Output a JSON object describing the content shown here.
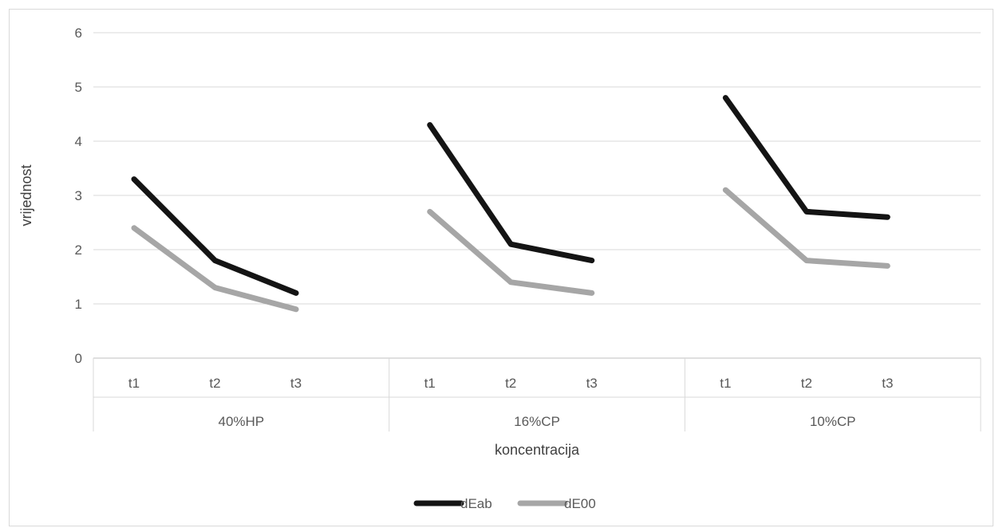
{
  "chart_data": {
    "type": "line",
    "xlabel": "koncentracija",
    "ylabel": "vrijednost",
    "ylim": [
      0,
      6
    ],
    "yticks": [
      0,
      1,
      2,
      3,
      4,
      5,
      6
    ],
    "grid": true,
    "legend_position": "bottom",
    "groups": [
      {
        "name": "40%HP",
        "categories": [
          "t1",
          "t2",
          "t3"
        ]
      },
      {
        "name": "16%CP",
        "categories": [
          "t1",
          "t2",
          "t3"
        ]
      },
      {
        "name": "10%CP",
        "categories": [
          "t1",
          "t2",
          "t3"
        ]
      }
    ],
    "series": [
      {
        "name": "dEab",
        "color": "#141414",
        "values": [
          [
            3.3,
            1.8,
            1.2
          ],
          [
            4.3,
            2.1,
            1.8
          ],
          [
            4.8,
            2.7,
            2.6
          ]
        ]
      },
      {
        "name": "dE00",
        "color": "#a6a6a6",
        "values": [
          [
            2.4,
            1.3,
            0.9
          ],
          [
            2.7,
            1.4,
            1.2
          ],
          [
            3.1,
            1.8,
            1.7
          ]
        ]
      }
    ]
  }
}
